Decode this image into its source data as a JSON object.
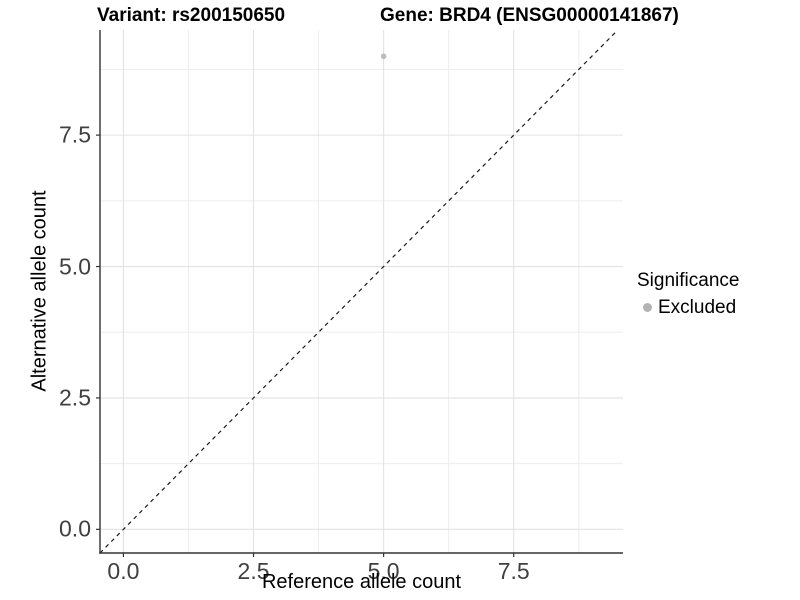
{
  "chart_data": {
    "type": "scatter",
    "title_left": "Variant: rs200150650",
    "title_right": "Gene: BRD4 (ENSG00000141867)",
    "xlabel": "Reference allele count",
    "ylabel": "Alternative allele count",
    "xlim": [
      -0.45,
      9.6
    ],
    "ylim": [
      -0.45,
      9.5
    ],
    "x_ticks": [
      {
        "value": 0,
        "label": "0.0"
      },
      {
        "value": 2.5,
        "label": "2.5"
      },
      {
        "value": 5,
        "label": "5.0"
      },
      {
        "value": 7.5,
        "label": "7.5"
      }
    ],
    "y_ticks": [
      {
        "value": 0,
        "label": "0.0"
      },
      {
        "value": 2.5,
        "label": "2.5"
      },
      {
        "value": 5,
        "label": "5.0"
      },
      {
        "value": 7.5,
        "label": "7.5"
      }
    ],
    "x_minor_gridlines": [
      1.25,
      3.75,
      6.25,
      8.75
    ],
    "y_minor_gridlines": [
      1.25,
      3.75,
      6.25,
      8.75
    ],
    "grid": true,
    "points": [
      {
        "x": 5,
        "y": 9,
        "series": "Excluded",
        "color": "#bdbdbd",
        "radius": 2.8
      }
    ],
    "identity_line": {
      "style": "dashed",
      "slope": 1,
      "intercept": 0,
      "from": [
        -0.45,
        -0.45
      ],
      "to": [
        9.5,
        9.5
      ],
      "color": "#1a1a1a"
    },
    "legend": {
      "title": "Significance",
      "position": "right",
      "items": [
        {
          "label": "Excluded",
          "color": "#b3b3b3"
        }
      ]
    },
    "colors": {
      "background": "#ffffff",
      "grid_major": "#e2e2e2",
      "grid_minor": "#ededed",
      "axis_line": "#333333",
      "tick_mark": "#333333",
      "tick_text": "#404040",
      "point": "#bdbdbd"
    }
  }
}
